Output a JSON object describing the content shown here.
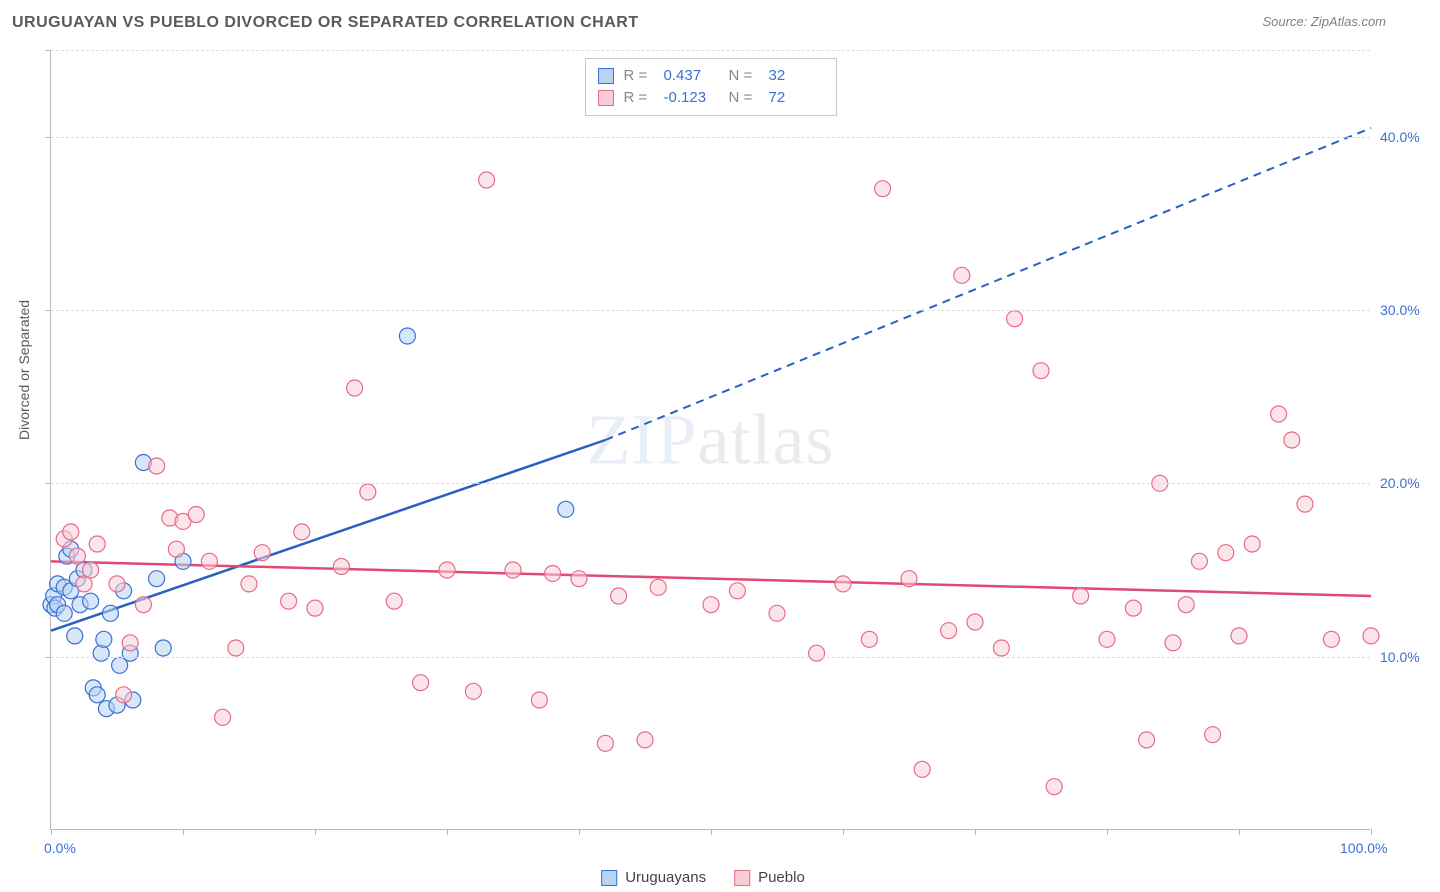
{
  "title": "URUGUAYAN VS PUEBLO DIVORCED OR SEPARATED CORRELATION CHART",
  "source": "Source: ZipAtlas.com",
  "watermark": "ZIPatlas",
  "y_axis_label": "Divorced or Separated",
  "colors": {
    "series_a_fill": "#b8d4f0",
    "series_a_stroke": "#3b6fd6",
    "series_b_fill": "#f8cdd8",
    "series_b_stroke": "#e86b8a",
    "grid": "#dcdcdc",
    "axis_text": "#3b6fd6",
    "title_text": "#5a5a5a",
    "trend_a": "#2c5fc4",
    "trend_b": "#e04a73"
  },
  "chart": {
    "type": "scatter",
    "x_range": [
      0,
      100
    ],
    "y_range": [
      0,
      45
    ],
    "x_ticks": [
      0,
      10,
      20,
      30,
      40,
      50,
      60,
      70,
      80,
      90,
      100
    ],
    "y_gridlines": [
      10,
      20,
      30,
      40,
      45
    ],
    "x_labels": [
      {
        "value": 0,
        "text": "0.0%"
      },
      {
        "value": 100,
        "text": "100.0%"
      }
    ],
    "y_labels": [
      {
        "value": 10,
        "text": "10.0%"
      },
      {
        "value": 20,
        "text": "20.0%"
      },
      {
        "value": 30,
        "text": "30.0%"
      },
      {
        "value": 40,
        "text": "40.0%"
      }
    ],
    "marker_radius": 8,
    "marker_opacity": 0.55
  },
  "series": [
    {
      "key": "uruguayans",
      "label": "Uruguayans",
      "r": "0.437",
      "n": "32",
      "points": [
        [
          0,
          13
        ],
        [
          0.2,
          13.5
        ],
        [
          0.3,
          12.8
        ],
        [
          0.5,
          14.2
        ],
        [
          0.5,
          13
        ],
        [
          1,
          12.5
        ],
        [
          1,
          14
        ],
        [
          1.2,
          15.8
        ],
        [
          1.5,
          16.2
        ],
        [
          1.5,
          13.8
        ],
        [
          1.8,
          11.2
        ],
        [
          2,
          14.5
        ],
        [
          2.2,
          13
        ],
        [
          2.5,
          15
        ],
        [
          3,
          13.2
        ],
        [
          3.2,
          8.2
        ],
        [
          3.5,
          7.8
        ],
        [
          3.8,
          10.2
        ],
        [
          4,
          11
        ],
        [
          4.2,
          7
        ],
        [
          4.5,
          12.5
        ],
        [
          5,
          7.2
        ],
        [
          5.2,
          9.5
        ],
        [
          5.5,
          13.8
        ],
        [
          6,
          10.2
        ],
        [
          6.2,
          7.5
        ],
        [
          7,
          21.2
        ],
        [
          8,
          14.5
        ],
        [
          8.5,
          10.5
        ],
        [
          27,
          28.5
        ],
        [
          39,
          18.5
        ],
        [
          10,
          15.5
        ]
      ],
      "trend": {
        "x1": 0,
        "y1": 11.5,
        "x2_solid": 42,
        "y2_solid": 22.5,
        "x2_dash": 100,
        "y2_dash": 40.5
      }
    },
    {
      "key": "pueblo",
      "label": "Pueblo",
      "r": "-0.123",
      "n": "72",
      "points": [
        [
          1,
          16.8
        ],
        [
          1.5,
          17.2
        ],
        [
          2,
          15.8
        ],
        [
          2.5,
          14.2
        ],
        [
          3,
          15
        ],
        [
          3.5,
          16.5
        ],
        [
          5,
          14.2
        ],
        [
          5.5,
          7.8
        ],
        [
          6,
          10.8
        ],
        [
          7,
          13
        ],
        [
          8,
          21
        ],
        [
          9,
          18
        ],
        [
          9.5,
          16.2
        ],
        [
          10,
          17.8
        ],
        [
          11,
          18.2
        ],
        [
          12,
          15.5
        ],
        [
          13,
          6.5
        ],
        [
          14,
          10.5
        ],
        [
          15,
          14.2
        ],
        [
          16,
          16
        ],
        [
          18,
          13.2
        ],
        [
          19,
          17.2
        ],
        [
          20,
          12.8
        ],
        [
          22,
          15.2
        ],
        [
          23,
          25.5
        ],
        [
          24,
          19.5
        ],
        [
          26,
          13.2
        ],
        [
          28,
          8.5
        ],
        [
          30,
          15
        ],
        [
          32,
          8
        ],
        [
          33,
          37.5
        ],
        [
          35,
          15
        ],
        [
          37,
          7.5
        ],
        [
          38,
          14.8
        ],
        [
          40,
          14.5
        ],
        [
          42,
          5
        ],
        [
          43,
          13.5
        ],
        [
          45,
          5.2
        ],
        [
          46,
          14
        ],
        [
          50,
          13
        ],
        [
          52,
          13.8
        ],
        [
          55,
          12.5
        ],
        [
          58,
          10.2
        ],
        [
          60,
          14.2
        ],
        [
          62,
          11
        ],
        [
          63,
          37
        ],
        [
          65,
          14.5
        ],
        [
          66,
          3.5
        ],
        [
          68,
          11.5
        ],
        [
          69,
          32
        ],
        [
          70,
          12
        ],
        [
          72,
          10.5
        ],
        [
          73,
          29.5
        ],
        [
          75,
          26.5
        ],
        [
          76,
          2.5
        ],
        [
          78,
          13.5
        ],
        [
          80,
          11
        ],
        [
          82,
          12.8
        ],
        [
          83,
          5.2
        ],
        [
          84,
          20
        ],
        [
          85,
          10.8
        ],
        [
          86,
          13
        ],
        [
          87,
          15.5
        ],
        [
          88,
          5.5
        ],
        [
          89,
          16
        ],
        [
          90,
          11.2
        ],
        [
          91,
          16.5
        ],
        [
          93,
          24
        ],
        [
          94,
          22.5
        ],
        [
          95,
          18.8
        ],
        [
          97,
          11
        ],
        [
          100,
          11.2
        ]
      ],
      "trend": {
        "x1": 0,
        "y1": 15.5,
        "x2_solid": 100,
        "y2_solid": 13.5
      }
    }
  ],
  "legend_top_labels": {
    "r": "R =",
    "n": "N ="
  },
  "bottom_legend": [
    "Uruguayans",
    "Pueblo"
  ]
}
